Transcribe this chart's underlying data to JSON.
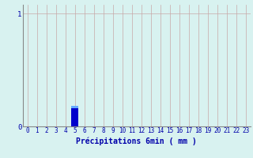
{
  "bar_x": 5,
  "bar_height": 0.18,
  "bar_color": "#0000cc",
  "bar_top_color": "#66aaff",
  "xlim": [
    -0.5,
    23.5
  ],
  "ylim": [
    0,
    1.08
  ],
  "yticks": [
    0,
    1
  ],
  "xticks": [
    0,
    1,
    2,
    3,
    4,
    5,
    6,
    7,
    8,
    9,
    10,
    11,
    12,
    13,
    14,
    15,
    16,
    17,
    18,
    19,
    20,
    21,
    22,
    23
  ],
  "xlabel": "Précipitations 6min ( mm )",
  "xlabel_fontsize": 7,
  "tick_fontsize": 5.5,
  "ytick_fontsize": 6.5,
  "background_color": "#d8f2f0",
  "grid_color": "#c8a8a8",
  "bar_width": 0.75,
  "top_stripe_height": 0.02
}
